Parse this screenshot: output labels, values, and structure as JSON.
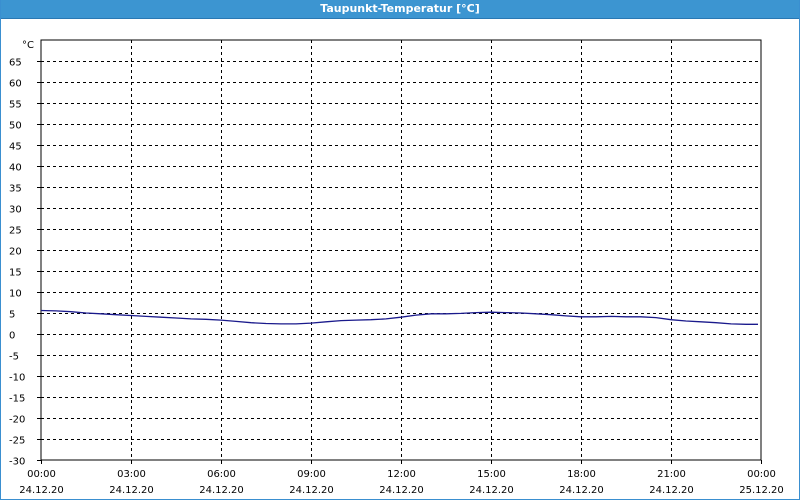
{
  "window": {
    "title": "Taupunkt-Temperatur [°C]"
  },
  "colors": {
    "titlebar": "#3c95d1",
    "line": "#1a1a8c",
    "grid": "#000000"
  },
  "chart_data": {
    "type": "line",
    "title": "Taupunkt-Temperatur [°C]",
    "yunit": "°C",
    "ylim": [
      -30,
      70
    ],
    "yticks": [
      -30,
      -25,
      -20,
      -15,
      -10,
      -5,
      0,
      5,
      10,
      15,
      20,
      25,
      30,
      35,
      40,
      45,
      50,
      55,
      60,
      65
    ],
    "xlim_hours": [
      0,
      24
    ],
    "xticks": [
      {
        "hour": 0,
        "time": "00:00",
        "date": "24.12.20"
      },
      {
        "hour": 3,
        "time": "03:00",
        "date": "24.12.20"
      },
      {
        "hour": 6,
        "time": "06:00",
        "date": "24.12.20"
      },
      {
        "hour": 9,
        "time": "09:00",
        "date": "24.12.20"
      },
      {
        "hour": 12,
        "time": "12:00",
        "date": "24.12.20"
      },
      {
        "hour": 15,
        "time": "15:00",
        "date": "24.12.20"
      },
      {
        "hour": 18,
        "time": "18:00",
        "date": "24.12.20"
      },
      {
        "hour": 21,
        "time": "21:00",
        "date": "24.12.20"
      },
      {
        "hour": 24,
        "time": "00:00",
        "date": "25.12.20"
      }
    ],
    "grid": true,
    "series": [
      {
        "x": [
          0,
          0.5,
          1,
          1.5,
          2,
          2.5,
          3,
          3.5,
          4,
          4.5,
          5,
          5.5,
          6,
          6.5,
          7,
          7.5,
          8,
          8.5,
          9,
          9.5,
          10,
          10.5,
          11,
          11.5,
          12,
          12.5,
          13,
          13.5,
          14,
          14.5,
          15,
          15.5,
          16,
          16.5,
          17,
          17.5,
          18,
          18.5,
          19,
          19.5,
          20,
          20.5,
          21,
          21.5,
          22,
          22.5,
          23,
          23.5,
          23.9
        ],
        "y": [
          5.6,
          5.5,
          5.3,
          5.0,
          4.8,
          4.6,
          4.4,
          4.2,
          4.0,
          3.8,
          3.6,
          3.5,
          3.3,
          3.0,
          2.7,
          2.5,
          2.4,
          2.4,
          2.6,
          2.9,
          3.2,
          3.3,
          3.4,
          3.6,
          4.0,
          4.5,
          4.8,
          4.8,
          4.9,
          5.1,
          5.2,
          5.1,
          5.0,
          4.8,
          4.6,
          4.3,
          4.1,
          4.1,
          4.2,
          4.1,
          4.1,
          3.9,
          3.4,
          3.1,
          2.9,
          2.7,
          2.4,
          2.3,
          2.3
        ]
      }
    ]
  }
}
